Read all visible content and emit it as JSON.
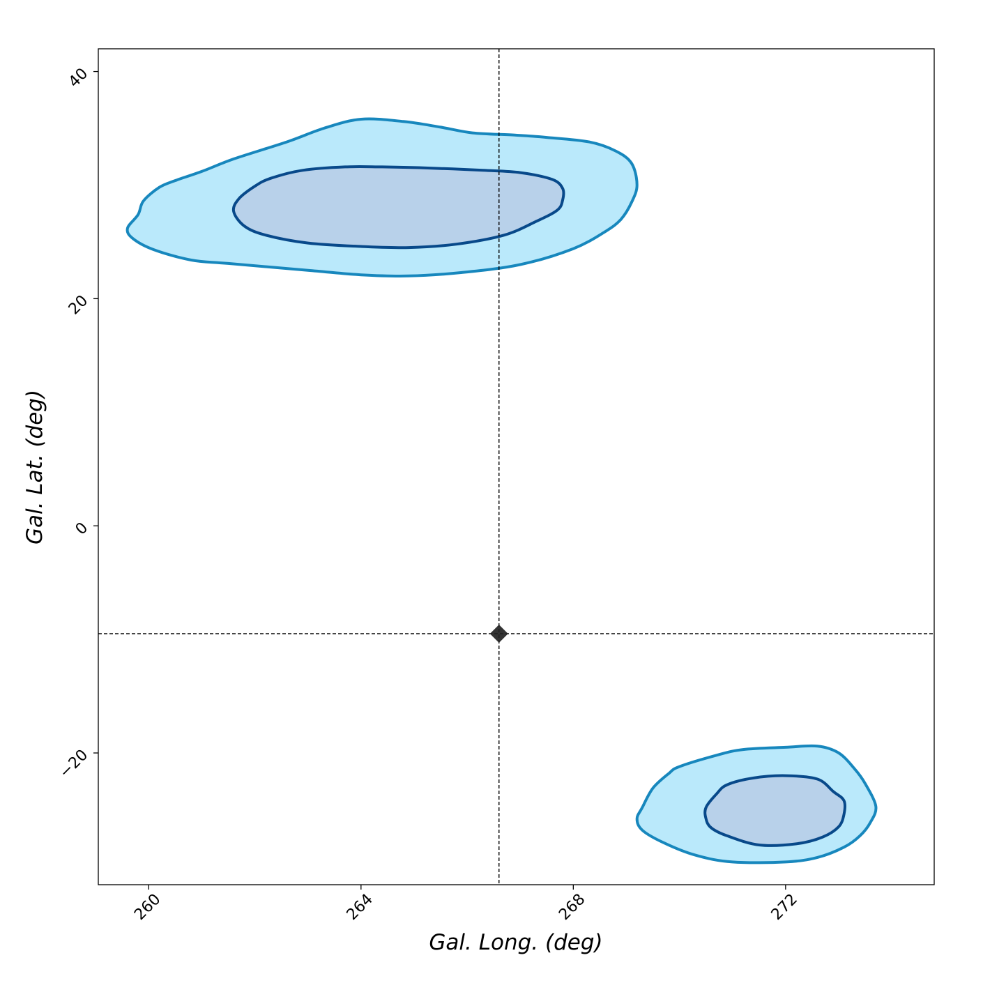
{
  "chart_data": {
    "type": "contour",
    "xlabel": "Gal. Long. (deg)",
    "ylabel": "Gal. Lat. (deg)",
    "xlim": [
      259.05,
      274.8
    ],
    "ylim": [
      -31.6,
      42.0
    ],
    "xticks": [
      260,
      264,
      268,
      272
    ],
    "xtick_labels": [
      "260",
      "264",
      "268",
      "272"
    ],
    "yticks": [
      -20,
      0,
      20,
      40
    ],
    "ytick_labels": [
      "−20",
      "0",
      "20",
      "40"
    ],
    "grid": false,
    "reference_point": {
      "x": 266.6,
      "y": -9.5
    },
    "reference_lines": {
      "x": 266.6,
      "y": -9.5
    },
    "colors": {
      "outer_fill": "#bae9fb",
      "outer_line": "#1787bd",
      "inner_fill": "#b8d1ea",
      "inner_line": "#08498a",
      "marker": "#222222",
      "ref_line": "#000000"
    },
    "regions": [
      {
        "level": "outer",
        "points": [
          [
            259.6,
            26.2
          ],
          [
            259.8,
            27.4
          ],
          [
            259.9,
            28.6
          ],
          [
            260.2,
            29.8
          ],
          [
            260.5,
            30.4
          ],
          [
            261.0,
            31.2
          ],
          [
            261.6,
            32.3
          ],
          [
            262.6,
            33.8
          ],
          [
            263.3,
            35.0
          ],
          [
            264.0,
            35.8
          ],
          [
            264.8,
            35.6
          ],
          [
            265.5,
            35.1
          ],
          [
            266.1,
            34.6
          ],
          [
            266.9,
            34.4
          ],
          [
            267.5,
            34.2
          ],
          [
            268.3,
            33.8
          ],
          [
            268.8,
            33.0
          ],
          [
            269.1,
            31.9
          ],
          [
            269.2,
            30.0
          ],
          [
            269.1,
            28.5
          ],
          [
            268.9,
            27.0
          ],
          [
            268.6,
            25.9
          ],
          [
            268.0,
            24.4
          ],
          [
            267.0,
            23.0
          ],
          [
            265.9,
            22.3
          ],
          [
            264.9,
            22.0
          ],
          [
            264.0,
            22.1
          ],
          [
            263.0,
            22.5
          ],
          [
            261.5,
            23.1
          ],
          [
            260.8,
            23.4
          ],
          [
            260.1,
            24.3
          ],
          [
            259.7,
            25.3
          ],
          [
            259.6,
            26.2
          ]
        ]
      },
      {
        "level": "inner",
        "points": [
          [
            261.6,
            27.7
          ],
          [
            261.7,
            28.8
          ],
          [
            262.0,
            29.9
          ],
          [
            262.3,
            30.6
          ],
          [
            262.9,
            31.3
          ],
          [
            263.7,
            31.6
          ],
          [
            264.4,
            31.6
          ],
          [
            265.3,
            31.5
          ],
          [
            266.3,
            31.3
          ],
          [
            267.0,
            31.1
          ],
          [
            267.6,
            30.5
          ],
          [
            267.8,
            29.7
          ],
          [
            267.8,
            28.7
          ],
          [
            267.7,
            27.8
          ],
          [
            267.3,
            26.8
          ],
          [
            266.7,
            25.6
          ],
          [
            265.8,
            24.8
          ],
          [
            264.9,
            24.5
          ],
          [
            264.0,
            24.6
          ],
          [
            263.0,
            24.9
          ],
          [
            262.2,
            25.6
          ],
          [
            261.8,
            26.4
          ],
          [
            261.6,
            27.7
          ]
        ]
      },
      {
        "level": "outer",
        "points": [
          [
            269.2,
            -25.8
          ],
          [
            269.3,
            -26.8
          ],
          [
            269.7,
            -27.9
          ],
          [
            270.3,
            -29.0
          ],
          [
            271.0,
            -29.6
          ],
          [
            272.0,
            -29.6
          ],
          [
            272.6,
            -29.2
          ],
          [
            273.1,
            -28.3
          ],
          [
            273.4,
            -27.3
          ],
          [
            273.6,
            -26.1
          ],
          [
            273.7,
            -24.7
          ],
          [
            273.5,
            -22.7
          ],
          [
            273.3,
            -21.4
          ],
          [
            273.0,
            -20.0
          ],
          [
            272.6,
            -19.4
          ],
          [
            272.0,
            -19.5
          ],
          [
            271.2,
            -19.7
          ],
          [
            270.7,
            -20.2
          ],
          [
            270.0,
            -21.2
          ],
          [
            269.8,
            -21.8
          ],
          [
            269.5,
            -23.1
          ],
          [
            269.3,
            -24.8
          ],
          [
            269.2,
            -25.8
          ]
        ]
      },
      {
        "level": "inner",
        "points": [
          [
            270.5,
            -25.8
          ],
          [
            270.6,
            -26.6
          ],
          [
            270.9,
            -27.3
          ],
          [
            271.5,
            -28.1
          ],
          [
            272.2,
            -28.0
          ],
          [
            272.7,
            -27.4
          ],
          [
            273.0,
            -26.5
          ],
          [
            273.1,
            -25.4
          ],
          [
            273.1,
            -24.2
          ],
          [
            272.9,
            -23.4
          ],
          [
            272.6,
            -22.3
          ],
          [
            272.0,
            -22.0
          ],
          [
            271.4,
            -22.2
          ],
          [
            270.9,
            -22.8
          ],
          [
            270.7,
            -23.6
          ],
          [
            270.5,
            -24.8
          ],
          [
            270.5,
            -25.8
          ]
        ]
      }
    ]
  }
}
